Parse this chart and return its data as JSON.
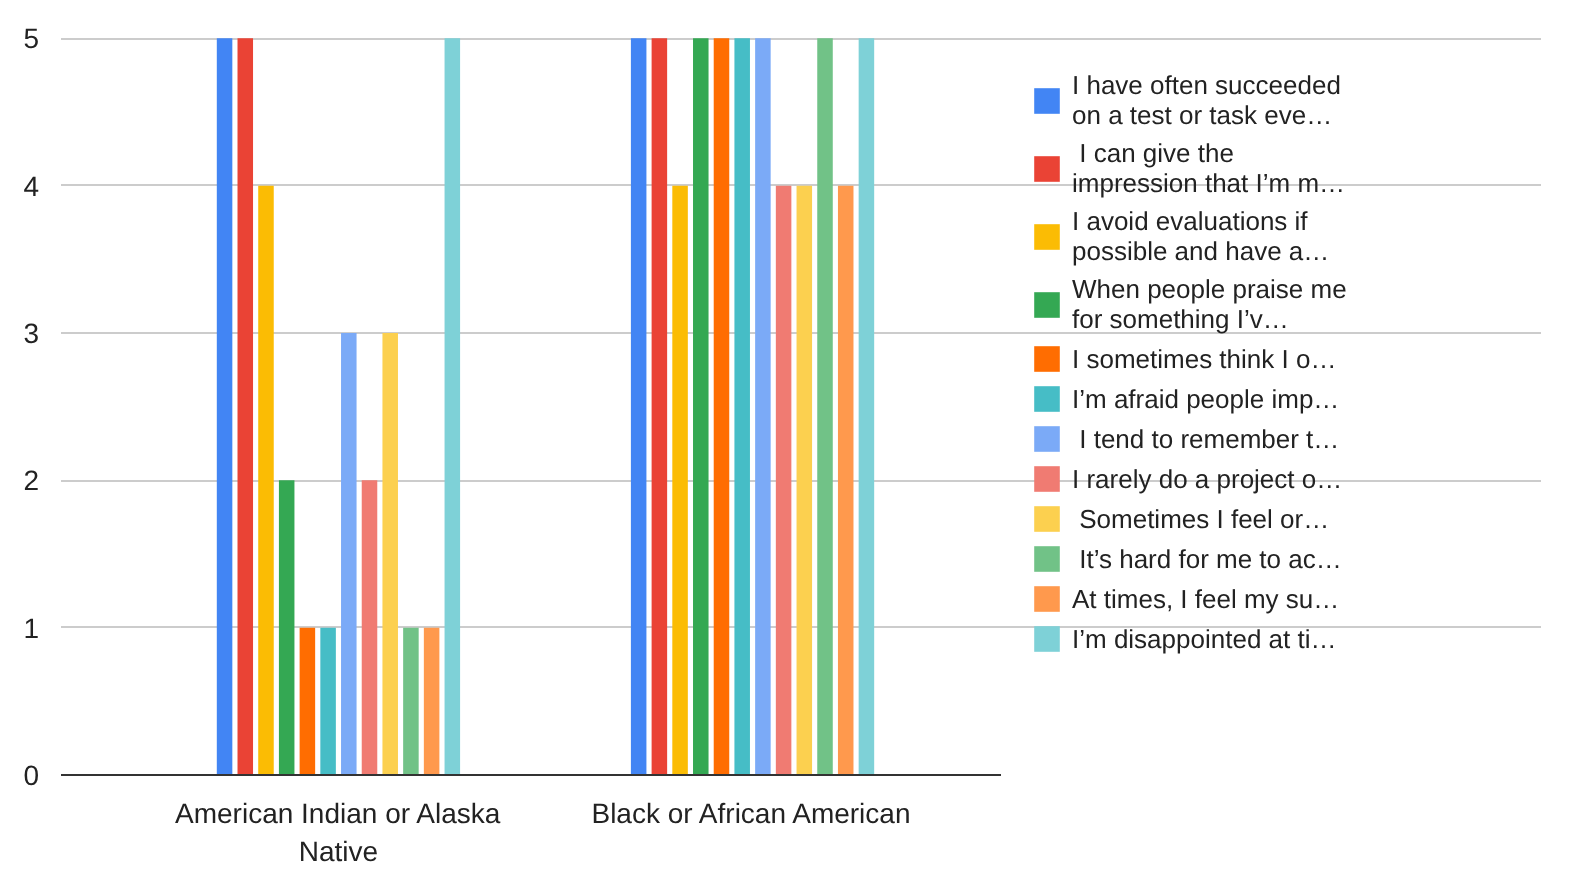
{
  "chart_data": {
    "type": "bar",
    "categories": [
      "American Indian or Alaska Native",
      "Black or African American"
    ],
    "series": [
      {
        "name": "I have often succeeded on a test or task eve…",
        "color": "#4285f4",
        "values": [
          5,
          5
        ]
      },
      {
        "name": " I can give the impression that I’m m…",
        "color": "#ea4335",
        "values": [
          5,
          5
        ]
      },
      {
        "name": "I avoid evaluations if possible and have a…",
        "color": "#fbbc04",
        "values": [
          4,
          4
        ]
      },
      {
        "name": "When people praise me for something I’v…",
        "color": "#34a853",
        "values": [
          2,
          5
        ]
      },
      {
        "name": "I sometimes think I o…",
        "color": "#ff6d01",
        "values": [
          1,
          5
        ]
      },
      {
        "name": "I’m afraid people imp…",
        "color": "#46bdc6",
        "values": [
          1,
          5
        ]
      },
      {
        "name": " I tend to remember t…",
        "color": "#7baaf7",
        "values": [
          3,
          5
        ]
      },
      {
        "name": "I rarely do a project o…",
        "color": "#f07b72",
        "values": [
          2,
          4
        ]
      },
      {
        "name": " Sometimes I feel or…",
        "color": "#fcd04f",
        "values": [
          3,
          4
        ]
      },
      {
        "name": " It’s hard for me to ac…",
        "color": "#71c287",
        "values": [
          1,
          5
        ]
      },
      {
        "name": "At times, I feel my su…",
        "color": "#ff994d",
        "values": [
          1,
          4
        ]
      },
      {
        "name": "I’m disappointed at ti…",
        "color": "#7ed1d7",
        "values": [
          5,
          5
        ]
      }
    ],
    "ylim": [
      0,
      5
    ],
    "yticks": [
      0,
      1,
      2,
      3,
      4,
      5
    ],
    "grid": "y",
    "legend": "right"
  }
}
